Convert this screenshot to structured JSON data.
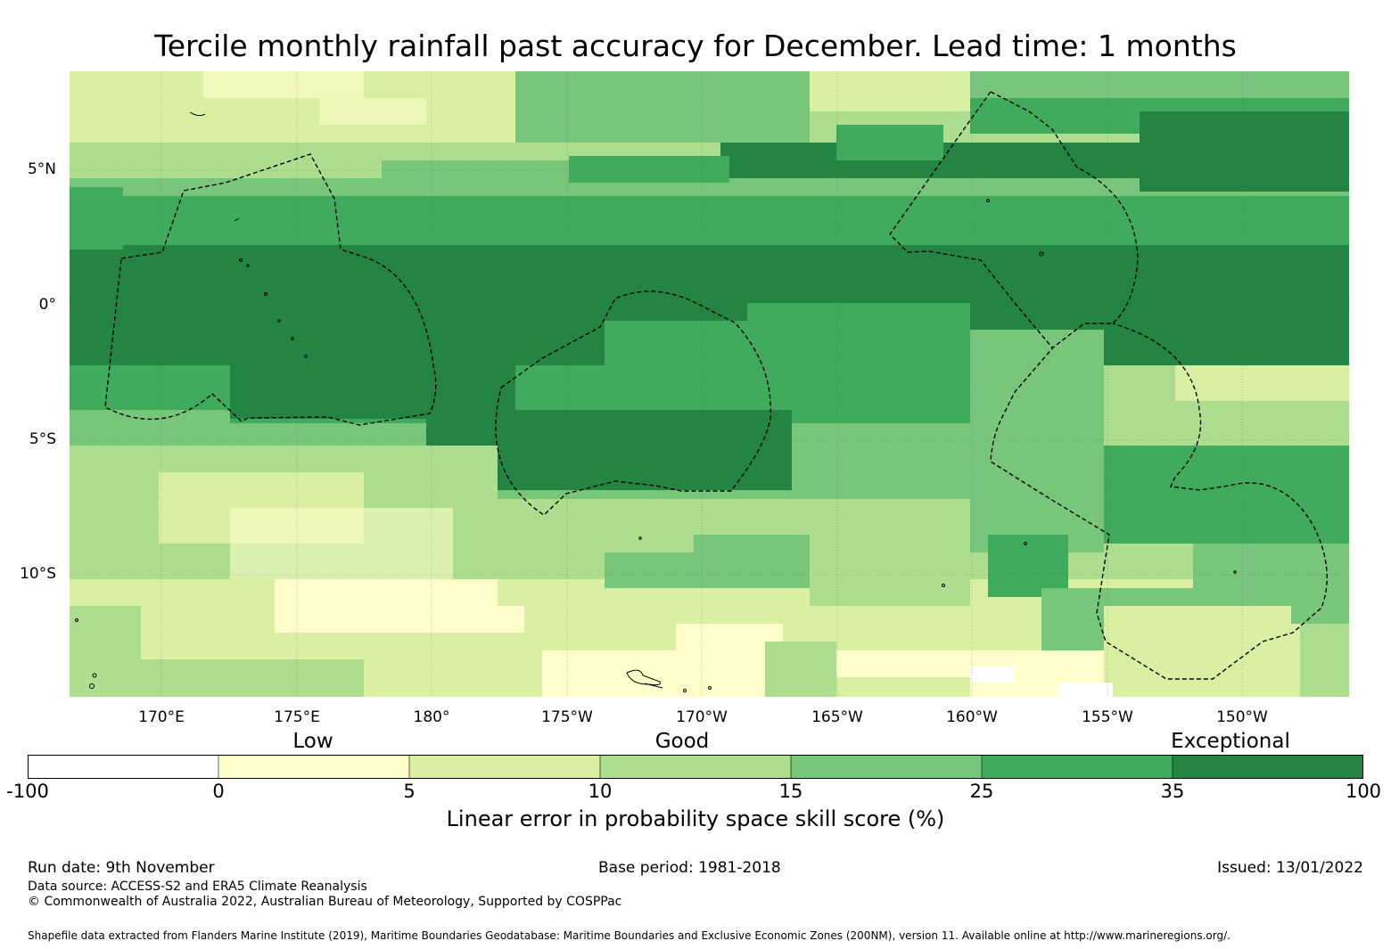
{
  "title": "Tercile monthly rainfall past accuracy for December. Lead time: 1 months",
  "map": {
    "lat_labels": [
      "5°N",
      "0°",
      "5°S",
      "10°S"
    ],
    "lon_labels": [
      "170°E",
      "175°E",
      "180°",
      "175°W",
      "170°W",
      "165°W",
      "160°W",
      "155°W",
      "150°W"
    ]
  },
  "categories": {
    "low": "Low",
    "good": "Good",
    "exceptional": "Exceptional"
  },
  "colorbar": {
    "ticks": [
      "-100",
      "0",
      "5",
      "10",
      "15",
      "25",
      "35",
      "100"
    ],
    "colors": [
      "#ffffff",
      "#ffffcc",
      "#d9f0a3",
      "#addd8e",
      "#78c679",
      "#41ab5d",
      "#238443"
    ],
    "label": "Linear error in probability space skill score (%)"
  },
  "footer": {
    "run_date": "Run date: 9th November",
    "base_period": "Base period: 1981-2018",
    "issued": "Issued: 13/01/2022",
    "data_source": "Data source: ACCESS-S2 and ERA5 Climate Reanalysis",
    "copyright": "© Commonwealth of Australia 2022, Australian Bureau of Meteorology, Supported by COSPPac",
    "shapefile": "Shapefile data extracted from Flanders Marine Institute (2019), Maritime Boundaries Geodatabase: Maritime Boundaries and Exclusive Economic Zones (200NM), version 11. Available online at http://www.marineregions.org/."
  }
}
